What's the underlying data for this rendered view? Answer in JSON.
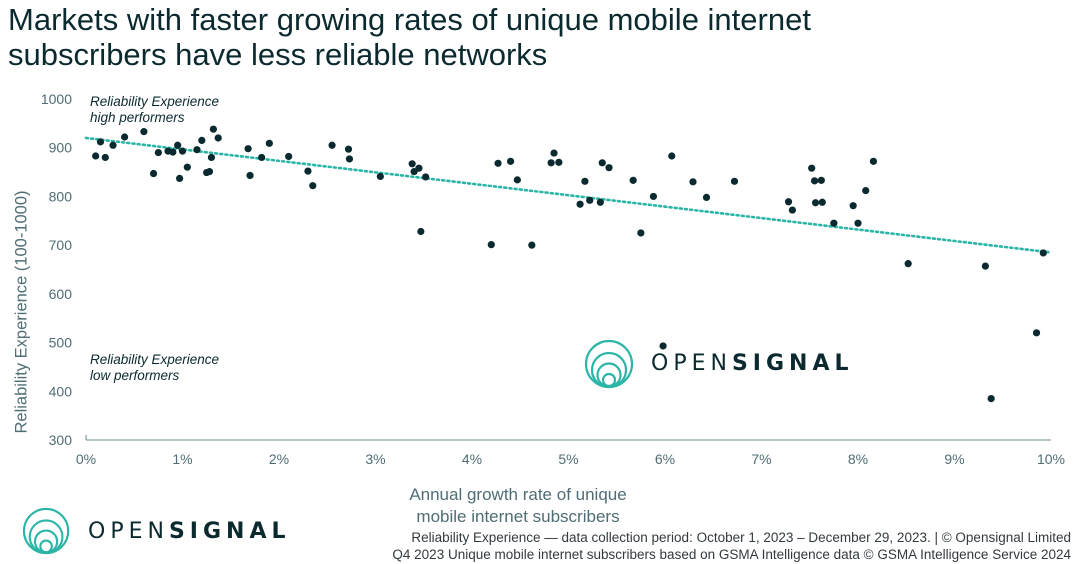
{
  "title_line1": "Markets with faster growing rates of unique mobile internet",
  "title_line2": "subscribers have less reliable networks",
  "annotation_high_line1": "Reliability Experience",
  "annotation_high_line2": "high performers",
  "annotation_low_line1": "Reliability Experience",
  "annotation_low_line2": "low performers",
  "brand": {
    "prefix": "OPEN",
    "suffix": "SIGNAL"
  },
  "footer_line1": "Reliability Experience — data collection period: October 1, 2023 – December 29, 2023. |  © Opensignal Limited",
  "footer_line2": "Q4 2023 Unique mobile internet subscribers based on GSMA Intelligence data © GSMA Intelligence Service 2024",
  "colors": {
    "dot": "#0b2a2f",
    "trend": "#2bb5a6",
    "axis_text": "#4f6d74",
    "brand_ring": "#2bb5a6"
  },
  "chart_data": {
    "type": "scatter",
    "xlabel": "Annual growth rate of unique mobile internet subscribers",
    "xlabel_line1": "Annual growth rate of unique",
    "xlabel_line2": "mobile internet subscribers",
    "ylabel": "Reliability Experience (100-1000)",
    "xlim": [
      0,
      10
    ],
    "ylim": [
      300,
      1000
    ],
    "x_ticks": [
      0,
      1,
      2,
      3,
      4,
      5,
      6,
      7,
      8,
      9,
      10
    ],
    "x_tick_labels": [
      "0%",
      "1%",
      "2%",
      "3%",
      "4%",
      "5%",
      "6%",
      "7%",
      "8%",
      "9%",
      "10%"
    ],
    "y_ticks": [
      300,
      400,
      500,
      600,
      700,
      800,
      900,
      1000
    ],
    "y_tick_labels": [
      "300",
      "400",
      "500",
      "600",
      "700",
      "800",
      "900",
      "1000"
    ],
    "grid": false,
    "trendline": {
      "x": [
        0,
        10
      ],
      "y": [
        920,
        685
      ]
    },
    "points": [
      [
        0.1,
        883
      ],
      [
        0.15,
        912
      ],
      [
        0.2,
        880
      ],
      [
        0.28,
        905
      ],
      [
        0.4,
        922
      ],
      [
        0.6,
        933
      ],
      [
        0.7,
        847
      ],
      [
        0.75,
        890
      ],
      [
        0.85,
        893
      ],
      [
        0.9,
        891
      ],
      [
        0.95,
        905
      ],
      [
        0.97,
        837
      ],
      [
        1.0,
        893
      ],
      [
        1.05,
        860
      ],
      [
        1.15,
        896
      ],
      [
        1.2,
        915
      ],
      [
        1.25,
        849
      ],
      [
        1.28,
        851
      ],
      [
        1.3,
        880
      ],
      [
        1.32,
        938
      ],
      [
        1.37,
        920
      ],
      [
        1.68,
        898
      ],
      [
        1.7,
        843
      ],
      [
        1.82,
        880
      ],
      [
        1.9,
        909
      ],
      [
        2.1,
        882
      ],
      [
        2.3,
        852
      ],
      [
        2.35,
        822
      ],
      [
        2.55,
        905
      ],
      [
        2.72,
        897
      ],
      [
        2.73,
        877
      ],
      [
        3.05,
        841
      ],
      [
        3.38,
        867
      ],
      [
        3.4,
        851
      ],
      [
        3.45,
        858
      ],
      [
        3.52,
        840
      ],
      [
        3.47,
        728
      ],
      [
        4.2,
        701
      ],
      [
        4.27,
        868
      ],
      [
        4.4,
        872
      ],
      [
        4.47,
        834
      ],
      [
        4.62,
        700
      ],
      [
        4.82,
        869
      ],
      [
        4.85,
        889
      ],
      [
        4.9,
        870
      ],
      [
        5.12,
        784
      ],
      [
        5.17,
        831
      ],
      [
        5.22,
        792
      ],
      [
        5.33,
        788
      ],
      [
        5.35,
        869
      ],
      [
        5.42,
        859
      ],
      [
        5.67,
        833
      ],
      [
        5.75,
        725
      ],
      [
        5.88,
        800
      ],
      [
        5.98,
        493
      ],
      [
        6.07,
        883
      ],
      [
        6.29,
        830
      ],
      [
        6.43,
        798
      ],
      [
        6.72,
        831
      ],
      [
        7.28,
        789
      ],
      [
        7.32,
        772
      ],
      [
        7.52,
        858
      ],
      [
        7.55,
        832
      ],
      [
        7.56,
        787
      ],
      [
        7.62,
        833
      ],
      [
        7.63,
        788
      ],
      [
        7.75,
        745
      ],
      [
        7.95,
        781
      ],
      [
        8.0,
        745
      ],
      [
        8.08,
        812
      ],
      [
        8.16,
        872
      ],
      [
        8.52,
        662
      ],
      [
        9.32,
        657
      ],
      [
        9.38,
        385
      ],
      [
        9.85,
        520
      ],
      [
        9.92,
        684
      ]
    ]
  }
}
